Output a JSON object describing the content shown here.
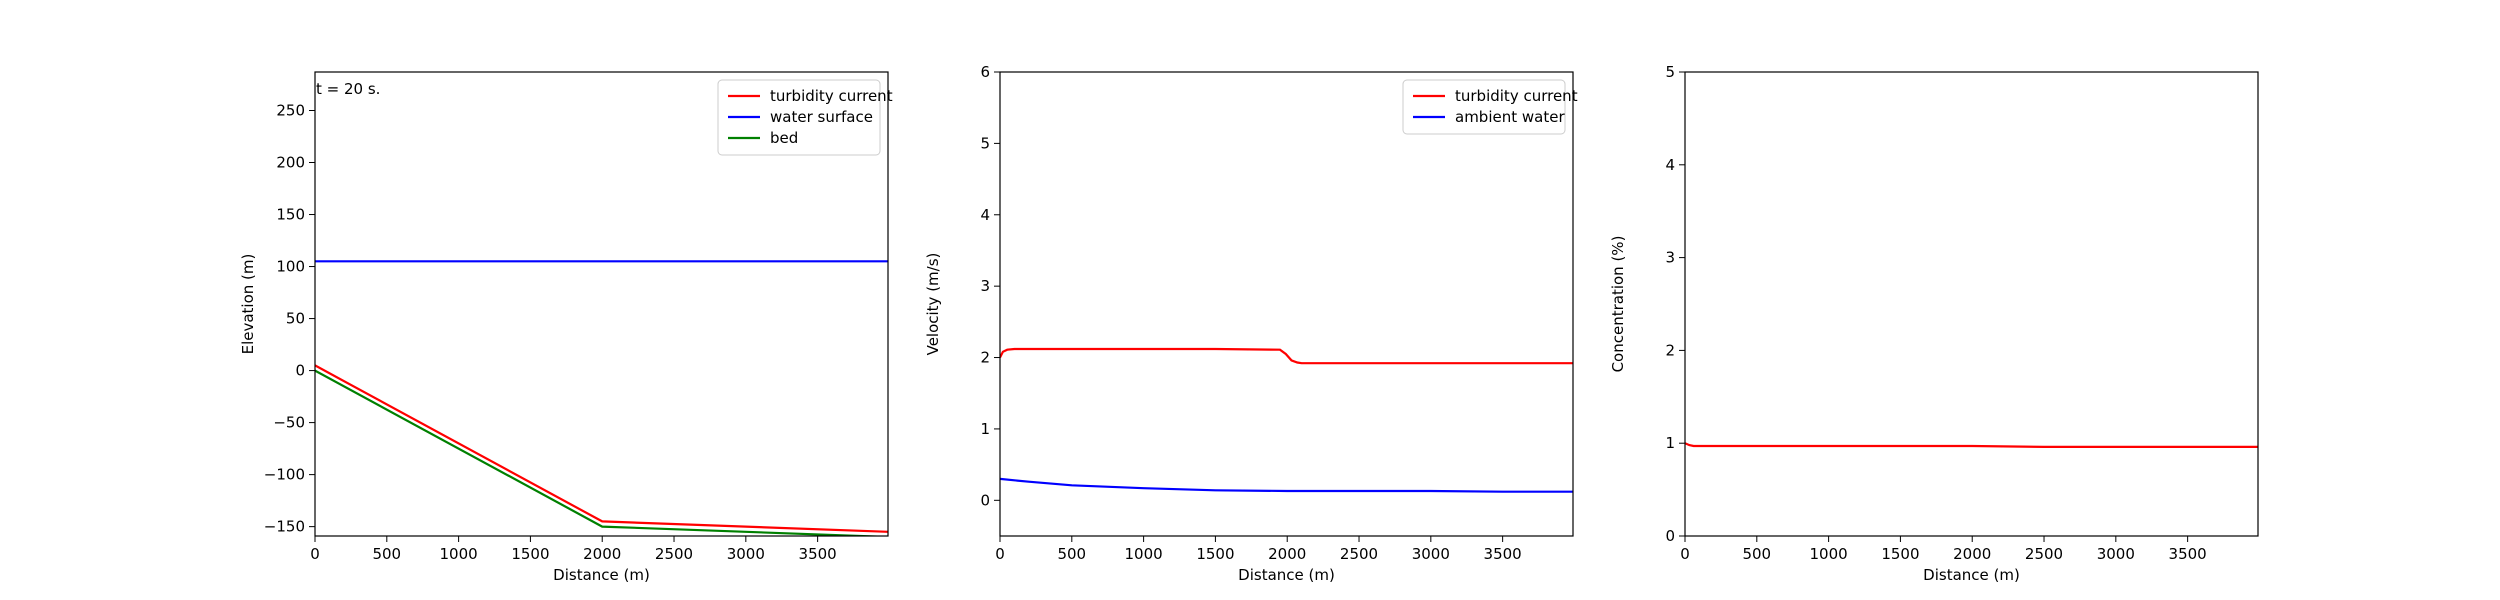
{
  "chart_data": [
    {
      "type": "line",
      "xlabel": "Distance (m)",
      "ylabel": "Elevation (m)",
      "xlim": [
        0,
        3990
      ],
      "ylim": [
        -159,
        287
      ],
      "xticks": [
        0,
        500,
        1000,
        1500,
        2000,
        2500,
        3000,
        3500
      ],
      "yticks": [
        -150,
        -100,
        -50,
        0,
        50,
        100,
        150,
        200,
        250
      ],
      "annotation": "t =  20 s.",
      "legend_position": "top-right",
      "series": [
        {
          "name": "turbidity current",
          "color": "#ff0000",
          "x": [
            0,
            2000,
            3990
          ],
          "y": [
            5,
            -145,
            -155
          ]
        },
        {
          "name": "water surface",
          "color": "#0000ff",
          "x": [
            0,
            3990
          ],
          "y": [
            105,
            105
          ]
        },
        {
          "name": "bed",
          "color": "#008000",
          "x": [
            0,
            2000,
            3990
          ],
          "y": [
            0,
            -150,
            -160
          ]
        }
      ]
    },
    {
      "type": "line",
      "xlabel": "Distance (m)",
      "ylabel": "Velocity (m/s)",
      "xlim": [
        0,
        3990
      ],
      "ylim": [
        -0.5,
        6
      ],
      "xticks": [
        0,
        500,
        1000,
        1500,
        2000,
        2500,
        3000,
        3500
      ],
      "yticks": [
        0,
        1,
        2,
        3,
        4,
        5,
        6
      ],
      "legend_position": "top-right",
      "series": [
        {
          "name": "turbidity current",
          "color": "#ff0000",
          "x": [
            0,
            20,
            50,
            100,
            500,
            1000,
            1500,
            1950,
            1990,
            2030,
            2070,
            2100,
            2500,
            3000,
            3500,
            3990
          ],
          "y": [
            2.0,
            2.08,
            2.11,
            2.12,
            2.12,
            2.12,
            2.12,
            2.11,
            2.05,
            1.96,
            1.93,
            1.92,
            1.92,
            1.92,
            1.92,
            1.92
          ]
        },
        {
          "name": "ambient water",
          "color": "#0000ff",
          "x": [
            0,
            200,
            500,
            1000,
            1500,
            2000,
            2500,
            3000,
            3500,
            3990
          ],
          "y": [
            0.3,
            0.26,
            0.21,
            0.17,
            0.14,
            0.13,
            0.13,
            0.13,
            0.12,
            0.12
          ]
        }
      ]
    },
    {
      "type": "line",
      "xlabel": "Distance (m)",
      "ylabel": "Concentration (%)",
      "xlim": [
        0,
        3990
      ],
      "ylim": [
        0,
        5
      ],
      "xticks": [
        0,
        500,
        1000,
        1500,
        2000,
        2500,
        3000,
        3500
      ],
      "yticks": [
        0,
        1,
        2,
        3,
        4,
        5
      ],
      "series": [
        {
          "name": "",
          "color": "#ff0000",
          "x": [
            0,
            30,
            60,
            100,
            500,
            1000,
            1500,
            2000,
            2500,
            3000,
            3500,
            3990
          ],
          "y": [
            1.0,
            0.98,
            0.97,
            0.97,
            0.97,
            0.97,
            0.97,
            0.97,
            0.96,
            0.96,
            0.96,
            0.96
          ]
        }
      ]
    }
  ]
}
